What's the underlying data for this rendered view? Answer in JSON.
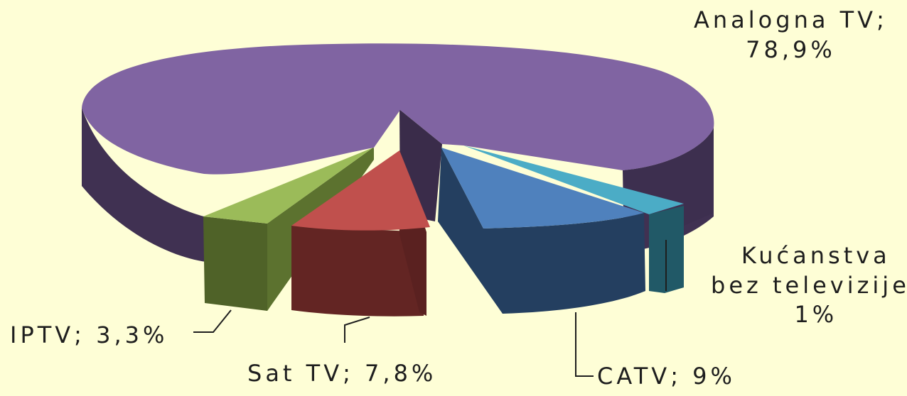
{
  "chart_data": {
    "type": "pie",
    "title": "",
    "style": "3d-exploded",
    "slices": [
      {
        "name": "Analogna TV",
        "value": 78.9,
        "label": "Analogna TV;",
        "value_label": "78,9%",
        "color": "#8064a2"
      },
      {
        "name": "Kućanstva bez televizije",
        "value": 1,
        "label": "Kućanstva bez televizije;",
        "value_label": "1%",
        "color": "#4bacc6"
      },
      {
        "name": "CATV",
        "value": 9,
        "label": "CATV; 9%",
        "color": "#4f81bd"
      },
      {
        "name": "Sat TV",
        "value": 7.8,
        "label": "Sat TV; 7,8%",
        "color": "#c0504d"
      },
      {
        "name": "IPTV",
        "value": 3.3,
        "label": "IPTV; 3,3%",
        "color": "#9bbb59"
      }
    ]
  },
  "labels": {
    "analogna": {
      "line1": "Analogna TV;",
      "line2": "78,9%"
    },
    "kucanstva": {
      "line1": "Kućanstva",
      "line2": "bez televizije;",
      "line3": "1%"
    },
    "catv": "CATV; 9%",
    "sat": "Sat TV; 7,8%",
    "iptv": "IPTV; 3,3%"
  }
}
